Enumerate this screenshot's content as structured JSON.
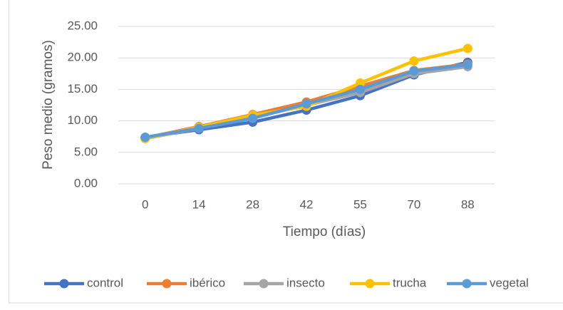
{
  "chart_data": {
    "type": "line",
    "x_label": "Tiempo (días)",
    "y_label": "Peso medio (gramos)",
    "categories": [
      "0",
      "14",
      "28",
      "42",
      "55",
      "70",
      "88"
    ],
    "series": [
      {
        "name": "control",
        "color": "#4472c4",
        "values": [
          7.4,
          8.6,
          9.8,
          11.7,
          14.0,
          17.3,
          19.3
        ]
      },
      {
        "name": "ibérico",
        "color": "#ed7d31",
        "values": [
          7.3,
          9.1,
          11.0,
          13.0,
          15.5,
          18.0,
          19.0
        ]
      },
      {
        "name": "insecto",
        "color": "#a5a5a5",
        "values": [
          7.2,
          8.8,
          10.5,
          12.5,
          14.5,
          17.5,
          18.6
        ]
      },
      {
        "name": "trucha",
        "color": "#ffc000",
        "values": [
          7.2,
          9.0,
          10.9,
          12.3,
          16.0,
          19.5,
          21.5
        ]
      },
      {
        "name": "vegetal",
        "color": "#5b9bd5",
        "values": [
          7.4,
          8.8,
          10.4,
          12.7,
          15.0,
          17.9,
          18.9
        ]
      }
    ],
    "ylim": [
      0,
      25
    ],
    "yticks": [
      {
        "value": 0,
        "label": "0.00"
      },
      {
        "value": 5,
        "label": "5.00"
      },
      {
        "value": 10,
        "label": "10.00"
      },
      {
        "value": 15,
        "label": "15.00"
      },
      {
        "value": 20,
        "label": "20.00"
      },
      {
        "value": 25,
        "label": "25.00"
      }
    ],
    "grid": true,
    "legend": "bottom"
  }
}
